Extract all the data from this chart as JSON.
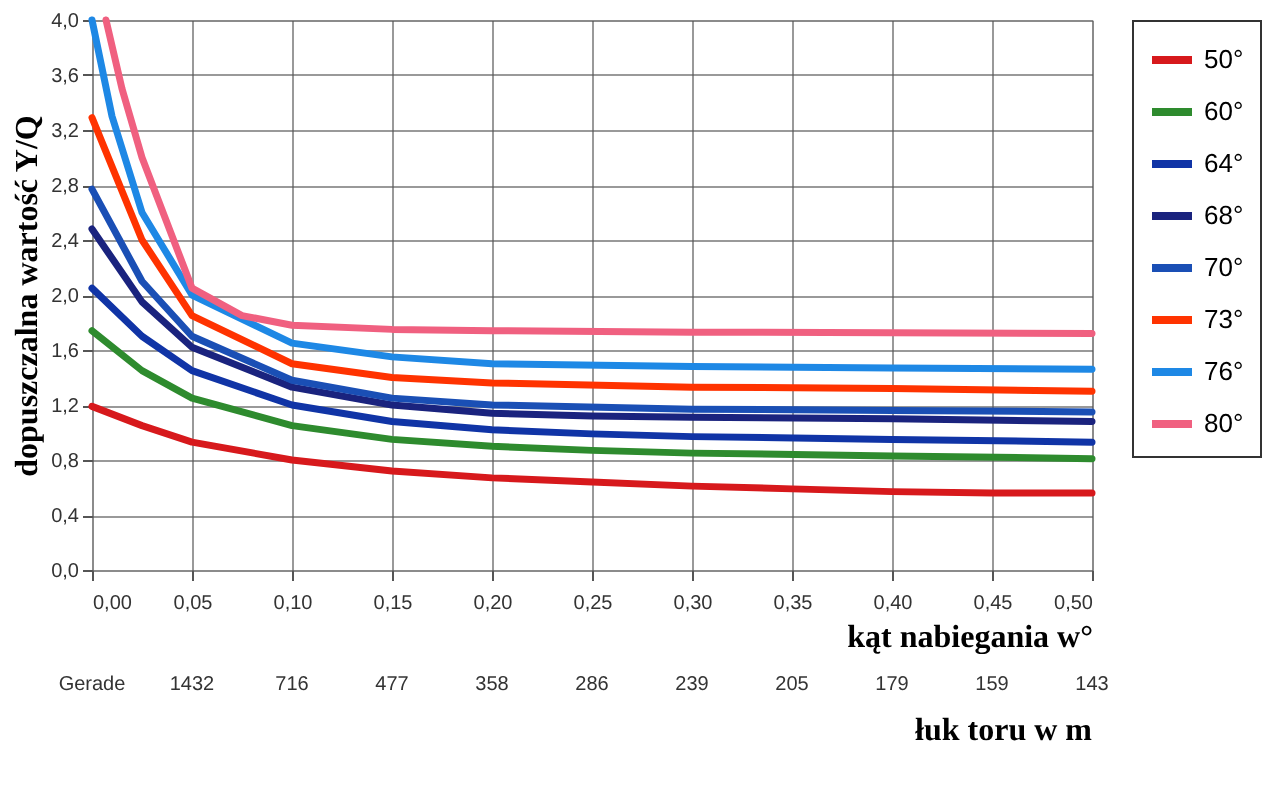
{
  "chart_data": {
    "type": "line",
    "xlabel": "kąt nabiegania w°",
    "ylabel": "dopuszczalna wartość Y/Q",
    "xlim": [
      0,
      0.5
    ],
    "ylim": [
      0,
      4
    ],
    "xticks": [
      {
        "value": 0,
        "label": "0,00"
      },
      {
        "value": 0.05,
        "label": "0,05"
      },
      {
        "value": 0.1,
        "label": "0,10"
      },
      {
        "value": 0.15,
        "label": "0,15"
      },
      {
        "value": 0.2,
        "label": "0,20"
      },
      {
        "value": 0.25,
        "label": "0,25"
      },
      {
        "value": 0.3,
        "label": "0,30"
      },
      {
        "value": 0.35,
        "label": "0,35"
      },
      {
        "value": 0.4,
        "label": "0,40"
      },
      {
        "value": 0.45,
        "label": "0,45"
      },
      {
        "value": 0.5,
        "label": "0,50"
      }
    ],
    "annotations": [
      "Gerade",
      "1432",
      "716",
      "477",
      "358",
      "286",
      "239",
      "205",
      "179",
      "159",
      "143",
      "łuk toru w m"
    ],
    "yticks": [
      {
        "value": 0,
        "label": "0,0"
      },
      {
        "value": 0.4,
        "label": "0,4"
      },
      {
        "value": 0.8,
        "label": "0,8"
      },
      {
        "value": 1.2,
        "label": "1,2"
      },
      {
        "value": 1.6,
        "label": "1,6"
      },
      {
        "value": 2,
        "label": "2,0"
      },
      {
        "value": 2.4,
        "label": "2,4"
      },
      {
        "value": 2.8,
        "label": "2,8"
      },
      {
        "value": 3.2,
        "label": "3,2"
      },
      {
        "value": 3.6,
        "label": "3,6"
      },
      {
        "value": 4,
        "label": "4,0"
      }
    ],
    "grid": true,
    "legend": "right",
    "line_style": "solid",
    "marker": "none",
    "series": [
      {
        "name": "50°",
        "color": "#d7191c",
        "x": [
          0,
          0.025,
          0.05,
          0.1,
          0.15,
          0.2,
          0.25,
          0.3,
          0.35,
          0.4,
          0.45,
          0.5
        ],
        "values": [
          1.19,
          1.05,
          0.93,
          0.8,
          0.72,
          0.67,
          0.64,
          0.61,
          0.59,
          0.57,
          0.56,
          0.56
        ]
      },
      {
        "name": "60°",
        "color": "#2e8b2e",
        "x": [
          0,
          0.025,
          0.05,
          0.1,
          0.15,
          0.2,
          0.25,
          0.3,
          0.4,
          0.5
        ],
        "values": [
          1.74,
          1.45,
          1.25,
          1.05,
          0.95,
          0.9,
          0.87,
          0.85,
          0.83,
          0.81
        ]
      },
      {
        "name": "64°",
        "color": "#1034a6",
        "x": [
          0,
          0.025,
          0.05,
          0.1,
          0.15,
          0.2,
          0.25,
          0.3,
          0.4,
          0.5
        ],
        "values": [
          2.05,
          1.7,
          1.45,
          1.2,
          1.08,
          1.02,
          0.99,
          0.97,
          0.95,
          0.93
        ]
      },
      {
        "name": "68°",
        "color": "#1a237e",
        "x": [
          0,
          0.025,
          0.05,
          0.1,
          0.15,
          0.2,
          0.25,
          0.3,
          0.4,
          0.5
        ],
        "values": [
          2.48,
          1.95,
          1.62,
          1.33,
          1.2,
          1.14,
          1.12,
          1.11,
          1.1,
          1.08
        ]
      },
      {
        "name": "70°",
        "color": "#1a4fb5",
        "x": [
          0,
          0.025,
          0.05,
          0.1,
          0.15,
          0.2,
          0.3,
          0.4,
          0.5
        ],
        "values": [
          2.77,
          2.1,
          1.7,
          1.38,
          1.25,
          1.2,
          1.17,
          1.16,
          1.15
        ]
      },
      {
        "name": "73°",
        "color": "#ff3300",
        "x": [
          0,
          0.025,
          0.05,
          0.1,
          0.15,
          0.2,
          0.3,
          0.4,
          0.5
        ],
        "values": [
          3.29,
          2.4,
          1.85,
          1.5,
          1.4,
          1.36,
          1.33,
          1.32,
          1.3
        ]
      },
      {
        "name": "76°",
        "color": "#1e88e5",
        "x": [
          0,
          0.01,
          0.025,
          0.05,
          0.1,
          0.15,
          0.2,
          0.3,
          0.4,
          0.5
        ],
        "values": [
          4.0,
          3.3,
          2.6,
          2.0,
          1.65,
          1.55,
          1.5,
          1.48,
          1.47,
          1.46
        ]
      },
      {
        "name": "80°",
        "color": "#f06080",
        "x": [
          0.007,
          0.015,
          0.025,
          0.05,
          0.075,
          0.1,
          0.15,
          0.2,
          0.3,
          0.5
        ],
        "values": [
          4.0,
          3.5,
          3.0,
          2.05,
          1.85,
          1.78,
          1.75,
          1.74,
          1.73,
          1.72
        ]
      }
    ]
  }
}
